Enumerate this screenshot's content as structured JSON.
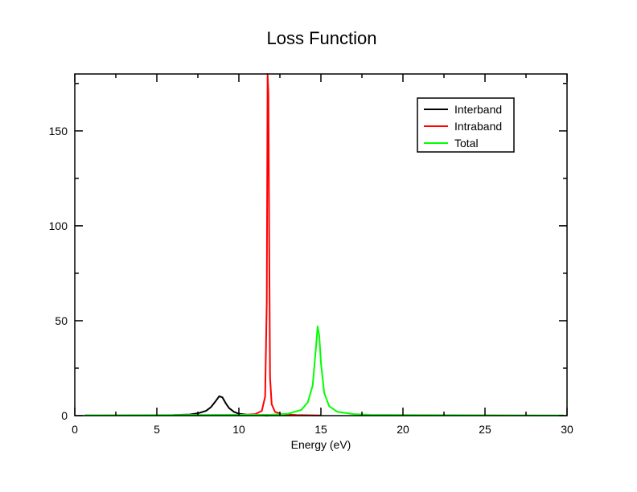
{
  "chart_data": {
    "type": "line",
    "title": "Loss Function",
    "xlabel": "Energy (eV)",
    "ylabel": "",
    "xlim": [
      0,
      30
    ],
    "ylim": [
      0,
      180
    ],
    "x_ticks": [
      0,
      5,
      10,
      15,
      20,
      25,
      30
    ],
    "y_ticks": [
      0,
      50,
      100,
      150
    ],
    "grid": false,
    "legend_position": "top-right",
    "series": [
      {
        "name": "Interband",
        "color": "#000000",
        "x": [
          6.0,
          7.0,
          7.5,
          8.0,
          8.3,
          8.6,
          8.8,
          9.0,
          9.2,
          9.4,
          9.7,
          10.0,
          10.5,
          11.0,
          11.5,
          11.8
        ],
        "y": [
          0.3,
          0.6,
          1.2,
          2.5,
          4.5,
          7.8,
          10.2,
          9.6,
          6.5,
          4.0,
          2.0,
          1.0,
          0.5,
          0.3,
          0.2,
          0.0
        ]
      },
      {
        "name": "Intraband",
        "color": "#ff0000",
        "x": [
          10.0,
          11.0,
          11.4,
          11.6,
          11.7,
          11.75,
          11.8,
          11.85,
          11.9,
          12.0,
          12.2,
          12.6,
          13.5,
          15.0
        ],
        "y": [
          0.2,
          0.8,
          2.5,
          10.0,
          60.0,
          180.0,
          170.0,
          90.0,
          20.0,
          6.0,
          2.0,
          0.8,
          0.3,
          0.1
        ]
      },
      {
        "name": "Total",
        "color": "#00ff00",
        "x": [
          0.6,
          10.0,
          12.0,
          13.0,
          13.8,
          14.2,
          14.5,
          14.7,
          14.8,
          14.9,
          15.0,
          15.2,
          15.5,
          16.0,
          17.0,
          18.0,
          25.0,
          29.8
        ],
        "y": [
          0.2,
          0.4,
          0.5,
          1.0,
          3.0,
          7.0,
          16.0,
          36.0,
          47.0,
          42.0,
          28.0,
          12.0,
          5.0,
          2.0,
          0.8,
          0.4,
          0.2,
          0.1
        ]
      }
    ]
  }
}
